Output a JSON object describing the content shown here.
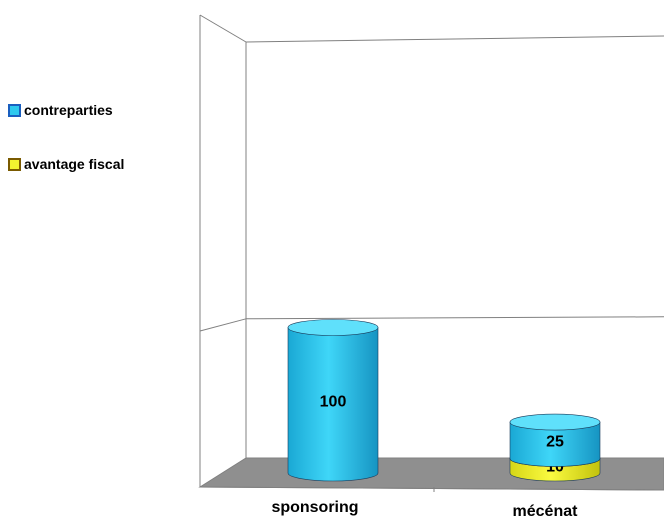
{
  "chart_data": {
    "type": "bar",
    "stacked": true,
    "style": "3d-cylinder",
    "categories": [
      "sponsoring",
      "mécénat"
    ],
    "series": [
      {
        "name": "avantage fiscal",
        "values": [
          0,
          10
        ],
        "color": "#f2f230"
      },
      {
        "name": "contreparties",
        "values": [
          100,
          25
        ],
        "color": "#2ec8ee"
      }
    ],
    "ylim": [
      0,
      200
    ],
    "grid": true,
    "legend_position": "left",
    "title": "",
    "xlabel": "",
    "ylabel": ""
  },
  "legend": {
    "items": [
      {
        "label": "contreparties",
        "color": "#2ec8ee"
      },
      {
        "label": "avantage fiscal",
        "color": "#f2f230"
      }
    ]
  }
}
